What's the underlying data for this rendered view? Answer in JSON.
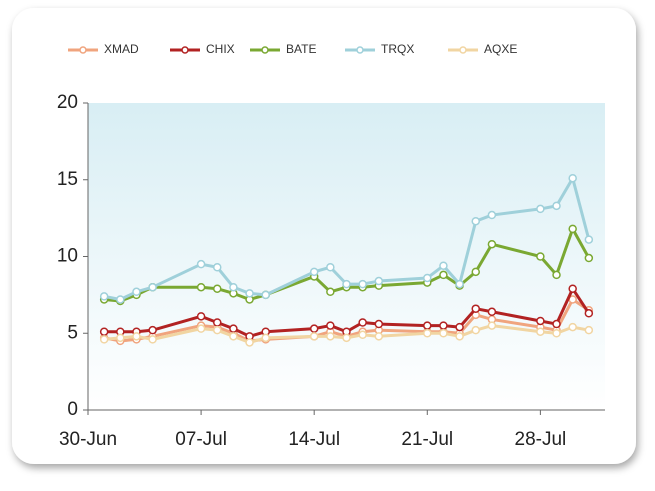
{
  "chart_data": {
    "type": "line",
    "x": [
      "01-Jul",
      "02-Jul",
      "03-Jul",
      "04-Jul",
      "07-Jul",
      "08-Jul",
      "09-Jul",
      "10-Jul",
      "11-Jul",
      "14-Jul",
      "15-Jul",
      "16-Jul",
      "17-Jul",
      "18-Jul",
      "21-Jul",
      "22-Jul",
      "23-Jul",
      "24-Jul",
      "25-Jul",
      "28-Jul",
      "29-Jul",
      "30-Jul",
      "31-Jul"
    ],
    "series": [
      {
        "name": "XMAD",
        "color": "#f0a47e",
        "values": [
          4.7,
          4.5,
          4.6,
          4.8,
          5.5,
          5.4,
          5.0,
          4.5,
          4.6,
          4.8,
          5.1,
          4.8,
          5.1,
          5.2,
          5.1,
          5.1,
          5.0,
          6.2,
          5.9,
          5.4,
          5.2,
          7.2,
          6.5
        ]
      },
      {
        "name": "CHIX",
        "color": "#b22222",
        "values": [
          5.1,
          5.1,
          5.1,
          5.2,
          6.1,
          5.7,
          5.3,
          4.8,
          5.1,
          5.3,
          5.5,
          5.1,
          5.7,
          5.6,
          5.5,
          5.5,
          5.4,
          6.6,
          6.4,
          5.8,
          5.6,
          7.9,
          6.3
        ]
      },
      {
        "name": "BATE",
        "color": "#7aa832",
        "values": [
          7.2,
          7.1,
          7.5,
          8.0,
          8.0,
          7.9,
          7.6,
          7.2,
          7.5,
          8.7,
          7.7,
          8.0,
          8.0,
          8.1,
          8.3,
          8.8,
          8.1,
          9.0,
          10.8,
          10.0,
          8.8,
          11.8,
          9.9
        ]
      },
      {
        "name": "TRQX",
        "color": "#9fd0da",
        "values": [
          7.4,
          7.2,
          7.7,
          8.0,
          9.5,
          9.3,
          8.0,
          7.6,
          7.5,
          9.0,
          9.3,
          8.2,
          8.2,
          8.4,
          8.6,
          9.4,
          8.2,
          12.3,
          12.7,
          13.1,
          13.3,
          15.1,
          11.1
        ]
      },
      {
        "name": "AQXE",
        "color": "#f1d5a2",
        "values": [
          4.6,
          4.7,
          4.8,
          4.6,
          5.3,
          5.2,
          4.8,
          4.4,
          4.7,
          4.8,
          4.8,
          4.7,
          4.9,
          4.8,
          5.0,
          5.0,
          4.8,
          5.2,
          5.5,
          5.1,
          5.0,
          5.4,
          5.2
        ]
      }
    ],
    "xlim": [
      "30-Jun",
      "01-Aug"
    ],
    "xticks": [
      "30-Jun",
      "07-Jul",
      "14-Jul",
      "21-Jul",
      "28-Jul"
    ],
    "ylim": [
      0,
      20
    ],
    "yticks": [
      0,
      5,
      10,
      15,
      20
    ]
  }
}
